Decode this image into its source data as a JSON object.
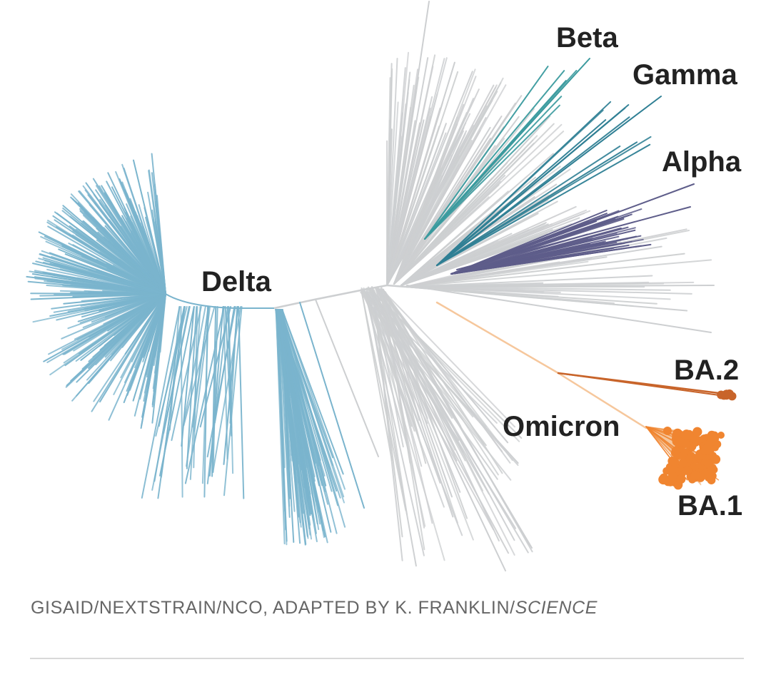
{
  "labels": {
    "delta": "Delta",
    "beta": "Beta",
    "gamma": "Gamma",
    "alpha": "Alpha",
    "ba2": "BA.2",
    "omicron": "Omicron",
    "ba1": "BA.1"
  },
  "credit": {
    "text": "GISAID/NEXTSTRAIN/NCO, ADAPTED BY K. FRANKLIN/",
    "italic": "SCIENCE"
  },
  "colors": {
    "delta": "#7ab4cd",
    "other": "#cdcfd1",
    "beta": "#3a9a9e",
    "gamma": "#2f7f94",
    "alpha": "#5e5d8a",
    "ba2": "#c8642a",
    "ba1": "#f08530",
    "omicron_stem": "#f6c79c"
  }
}
